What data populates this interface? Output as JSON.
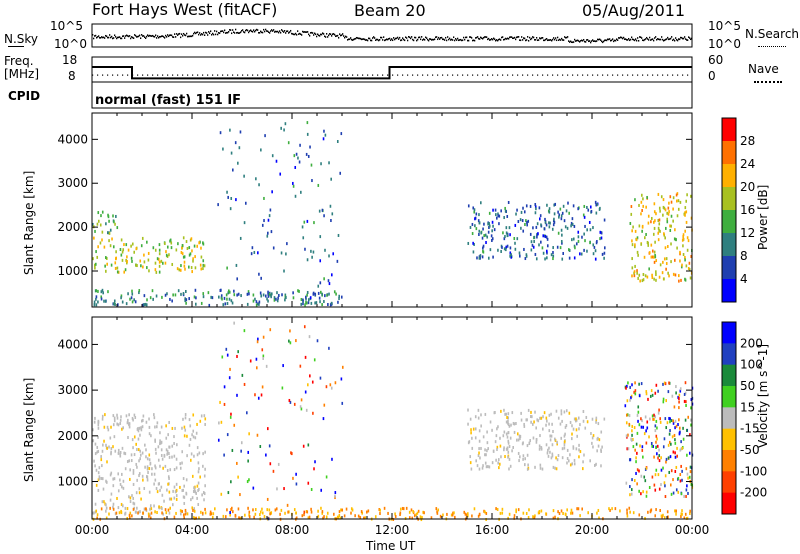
{
  "header": {
    "station": "Fort Hays West (fitACF)",
    "beam": "Beam 20",
    "date": "05/Aug/2011"
  },
  "nsky_panel": {
    "left_label": "N.Sky",
    "left_ticks": [
      "10^5",
      "10^0"
    ],
    "right_label": "N.Search",
    "right_ticks": [
      "10^5",
      "10^0"
    ]
  },
  "freq_panel": {
    "left_label_line1": "Freq.",
    "left_label_line2": "[MHz]",
    "left_ticks": [
      "18",
      "8"
    ],
    "right_label": "Nave",
    "right_ticks": [
      "60",
      "0"
    ],
    "freq_steps_hours": [
      [
        0,
        14.3
      ],
      [
        1.6,
        8.3
      ],
      [
        11.9,
        14.3
      ],
      [
        24,
        14.3
      ]
    ]
  },
  "cpid": {
    "label": "CPID",
    "value": "normal (fast) 151 IF"
  },
  "chart_data": [
    {
      "type": "heatmap",
      "title": "Power",
      "ylabel": "Slant Range [km]",
      "xlabel": "Time UT",
      "ylim": [
        180,
        4600
      ],
      "xlim": [
        0,
        24
      ],
      "ytick_labels": [
        "1000",
        "2000",
        "3000",
        "4000"
      ],
      "yticks": [
        1000,
        2000,
        3000,
        4000
      ],
      "colorbar": {
        "label": "Power [dB]",
        "tick_labels": [
          "4",
          "8",
          "12",
          "16",
          "20",
          "24",
          "28"
        ],
        "colors": [
          "#0000ff",
          "#1f3fb0",
          "#2f7f7f",
          "#3fae3f",
          "#a8c020",
          "#ffb000",
          "#ff7000",
          "#ff0000"
        ]
      },
      "features": [
        {
          "name": "ground scatter near range",
          "t_start": 0.0,
          "t_end": 10.0,
          "range_km": [
            250,
            600
          ],
          "level_db": 8
        },
        {
          "name": "morning band",
          "t_start": 0.0,
          "t_end": 4.5,
          "range_km": [
            1000,
            1800
          ],
          "level_db": 16
        },
        {
          "name": "early echo",
          "t_start": 0.0,
          "t_end": 1.0,
          "range_km": [
            1800,
            2400
          ],
          "level_db": 12
        },
        {
          "name": "sparse midnight scatter",
          "t_start": 5.0,
          "t_end": 10.0,
          "range_km": [
            200,
            4500
          ],
          "level_db": 6
        },
        {
          "name": "afternoon band",
          "t_start": 15.0,
          "t_end": 20.5,
          "range_km": [
            1300,
            2600
          ],
          "level_db": 6
        },
        {
          "name": "evening echo",
          "t_start": 21.5,
          "t_end": 24.0,
          "range_km": [
            800,
            2800
          ],
          "level_db": 18
        }
      ]
    },
    {
      "type": "heatmap",
      "title": "Velocity",
      "ylabel": "Slant Range [km]",
      "xlabel": "Time UT",
      "ylim": [
        180,
        4600
      ],
      "xlim": [
        0,
        24
      ],
      "ytick_labels": [
        "1000",
        "2000",
        "3000",
        "4000"
      ],
      "yticks": [
        1000,
        2000,
        3000,
        4000
      ],
      "colorbar": {
        "label": "Velocity [m s^-1]",
        "tick_labels": [
          "200",
          "100",
          "50",
          "15",
          "-15",
          "-50",
          "-100",
          "-200"
        ],
        "colors": [
          "#0000ff",
          "#2040c0",
          "#1a8a3a",
          "#40d020",
          "#bcbcbc",
          "#ffc000",
          "#ff8000",
          "#ff4000",
          "#ff0000"
        ]
      },
      "features": [
        {
          "name": "ground scatter (grey)",
          "t_start": 0.0,
          "t_end": 4.5,
          "range_km": [
            300,
            2500
          ],
          "velocity": 0
        },
        {
          "name": "near-range band",
          "t_start": 0.0,
          "t_end": 24.0,
          "range_km": [
            200,
            450
          ],
          "velocity": -50
        },
        {
          "name": "mixed scatter",
          "t_start": 5.0,
          "t_end": 10.0,
          "range_km": [
            200,
            4500
          ],
          "velocity": 0
        },
        {
          "name": "afternoon grey band",
          "t_start": 15.0,
          "t_end": 20.5,
          "range_km": [
            1300,
            2600
          ],
          "velocity": 0
        },
        {
          "name": "evening convection",
          "t_start": 21.3,
          "t_end": 24.0,
          "range_km": [
            700,
            3200
          ],
          "velocity": 60
        }
      ]
    }
  ],
  "x_axis": {
    "label": "Time UT",
    "tick_labels": [
      "00:00",
      "04:00",
      "08:00",
      "12:00",
      "16:00",
      "20:00",
      "00:00"
    ]
  }
}
